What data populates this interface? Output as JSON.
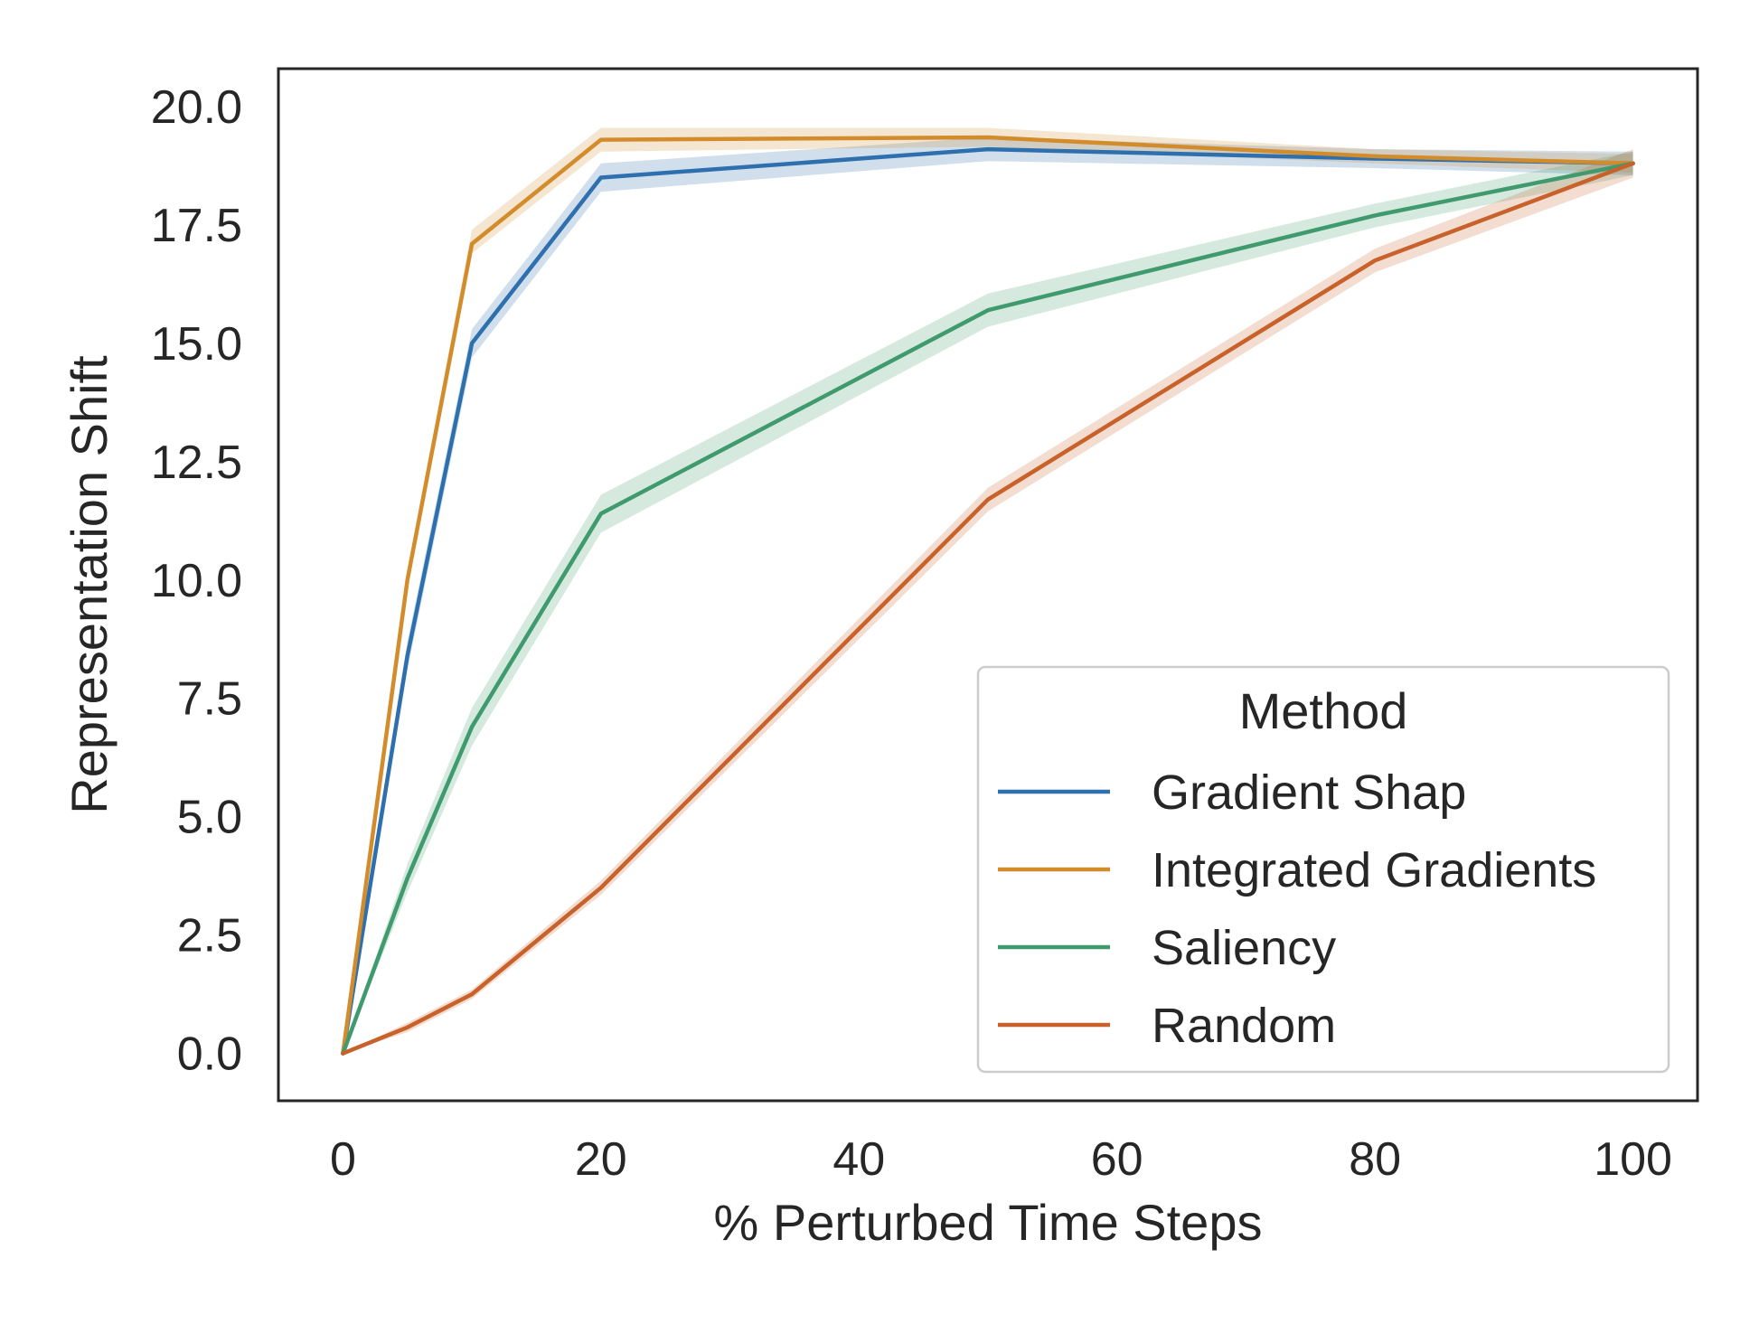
{
  "chart_data": {
    "type": "line",
    "title": "",
    "xlabel": "% Perturbed Time Steps",
    "ylabel": "Representation Shift",
    "xlim": [
      -5,
      105
    ],
    "ylim": [
      -1,
      20.8
    ],
    "x_ticks": [
      0,
      20,
      40,
      60,
      80,
      100
    ],
    "x_tick_labels": [
      "0",
      "20",
      "40",
      "60",
      "80",
      "100"
    ],
    "y_ticks": [
      0,
      2.5,
      5,
      7.5,
      10,
      12.5,
      15,
      17.5,
      20
    ],
    "y_tick_labels": [
      "0.0",
      "2.5",
      "5.0",
      "7.5",
      "10.0",
      "12.5",
      "15.0",
      "17.5",
      "20.0"
    ],
    "grid": false,
    "legend": {
      "title": "Method",
      "placement": "lower-right"
    },
    "x": [
      0,
      5,
      10,
      20,
      50,
      80,
      100
    ],
    "series": [
      {
        "name": "Gradient Shap",
        "color": "#2e6fae",
        "values": [
          0,
          8.4,
          15.0,
          18.5,
          19.1,
          18.9,
          18.8
        ],
        "lower": [
          0,
          8.1,
          14.7,
          18.2,
          18.85,
          18.7,
          18.55
        ],
        "upper": [
          0,
          8.7,
          15.3,
          18.8,
          19.35,
          19.1,
          19.05
        ]
      },
      {
        "name": "Integrated Gradients",
        "color": "#d38c2c",
        "values": [
          0,
          10.0,
          17.1,
          19.3,
          19.35,
          18.95,
          18.8
        ],
        "lower": [
          0,
          9.8,
          16.9,
          19.05,
          19.15,
          18.8,
          18.6
        ],
        "upper": [
          0,
          10.2,
          17.4,
          19.55,
          19.55,
          19.1,
          19.0
        ]
      },
      {
        "name": "Saliency",
        "color": "#3f9a6e",
        "values": [
          0,
          3.7,
          6.9,
          11.4,
          15.7,
          17.7,
          18.8
        ],
        "lower": [
          0,
          3.4,
          6.5,
          11.0,
          15.35,
          17.45,
          18.55
        ],
        "upper": [
          0,
          4.0,
          7.3,
          11.8,
          16.05,
          17.95,
          19.05
        ]
      },
      {
        "name": "Random",
        "color": "#c8612a",
        "values": [
          0,
          0.55,
          1.25,
          3.5,
          11.7,
          16.75,
          18.8
        ],
        "lower": [
          0,
          0.45,
          1.15,
          3.35,
          11.45,
          16.5,
          18.5
        ],
        "upper": [
          0,
          0.65,
          1.35,
          3.65,
          11.95,
          17.0,
          19.1
        ]
      }
    ]
  }
}
